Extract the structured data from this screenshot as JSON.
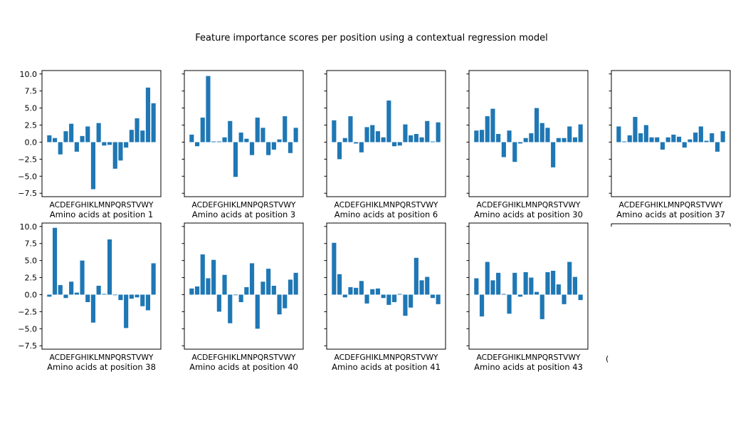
{
  "figure": {
    "title": "Feature importance scores per position using a contextual regression model"
  },
  "chart_data": [
    {
      "type": "bar",
      "xlabel": "Amino acids at position 1",
      "ylim": [
        -8,
        10.5
      ],
      "categories": [
        "A",
        "C",
        "D",
        "E",
        "F",
        "G",
        "H",
        "I",
        "K",
        "L",
        "M",
        "N",
        "P",
        "Q",
        "R",
        "S",
        "T",
        "V",
        "W",
        "Y"
      ],
      "values": [
        1.0,
        0.6,
        -1.8,
        1.6,
        2.7,
        -1.4,
        0.9,
        2.3,
        -6.9,
        2.8,
        -0.5,
        -0.4,
        -3.9,
        -2.7,
        -0.8,
        1.8,
        3.5,
        1.7,
        8.0,
        5.7
      ]
    },
    {
      "type": "bar",
      "xlabel": "Amino acids at position 3",
      "ylim": [
        -8,
        10.5
      ],
      "categories": [
        "A",
        "C",
        "D",
        "E",
        "F",
        "G",
        "H",
        "I",
        "K",
        "L",
        "M",
        "N",
        "P",
        "Q",
        "R",
        "S",
        "T",
        "V",
        "W",
        "Y"
      ],
      "values": [
        1.1,
        -0.6,
        3.6,
        9.7,
        0.1,
        0.1,
        0.7,
        3.1,
        -5.1,
        1.4,
        0.5,
        -1.9,
        3.6,
        2.1,
        -1.9,
        -1.1,
        0.4,
        3.8,
        -1.6,
        2.1
      ]
    },
    {
      "type": "bar",
      "xlabel": "Amino acids at position 6",
      "ylim": [
        -8,
        10.5
      ],
      "categories": [
        "A",
        "C",
        "D",
        "E",
        "F",
        "G",
        "H",
        "I",
        "K",
        "L",
        "M",
        "N",
        "P",
        "Q",
        "R",
        "S",
        "T",
        "V",
        "W",
        "Y"
      ],
      "values": [
        3.2,
        -2.5,
        0.6,
        3.8,
        -0.2,
        -1.5,
        2.2,
        2.5,
        1.6,
        0.7,
        6.1,
        -0.6,
        -0.5,
        2.6,
        1.0,
        1.2,
        0.7,
        3.1,
        0.1,
        2.9
      ]
    },
    {
      "type": "bar",
      "xlabel": "Amino acids at position 30",
      "ylim": [
        -8,
        10.5
      ],
      "categories": [
        "A",
        "C",
        "D",
        "E",
        "F",
        "G",
        "H",
        "I",
        "K",
        "L",
        "M",
        "N",
        "P",
        "Q",
        "R",
        "S",
        "T",
        "V",
        "W",
        "Y"
      ],
      "values": [
        1.7,
        1.8,
        3.8,
        4.9,
        1.2,
        -2.2,
        1.7,
        -2.9,
        -0.2,
        0.6,
        1.3,
        5.0,
        2.8,
        2.1,
        -3.7,
        0.6,
        0.6,
        2.3,
        0.7,
        2.6
      ]
    },
    {
      "type": "bar",
      "xlabel": "Amino acids at position 37",
      "ylim": [
        -8,
        10.5
      ],
      "categories": [
        "A",
        "C",
        "D",
        "E",
        "F",
        "G",
        "H",
        "I",
        "K",
        "L",
        "M",
        "N",
        "P",
        "Q",
        "R",
        "S",
        "T",
        "V",
        "W",
        "Y"
      ],
      "values": [
        2.3,
        0.1,
        1.0,
        3.7,
        1.3,
        2.5,
        0.7,
        0.7,
        -1.1,
        0.7,
        1.1,
        0.8,
        -0.8,
        0.4,
        1.4,
        2.3,
        0.2,
        1.3,
        -1.4,
        1.6
      ]
    },
    {
      "type": "bar",
      "xlabel": "Amino acids at position 38",
      "ylim": [
        -8,
        10.5
      ],
      "categories": [
        "A",
        "C",
        "D",
        "E",
        "F",
        "G",
        "H",
        "I",
        "K",
        "L",
        "M",
        "N",
        "P",
        "Q",
        "R",
        "S",
        "T",
        "V",
        "W",
        "Y"
      ],
      "values": [
        -0.3,
        9.8,
        1.4,
        -0.5,
        1.9,
        0.3,
        5.0,
        -1.1,
        -4.1,
        1.3,
        0.1,
        8.1,
        0.0,
        -0.8,
        -4.9,
        -0.6,
        -0.4,
        -1.7,
        -2.3,
        4.6
      ]
    },
    {
      "type": "bar",
      "xlabel": "Amino acids at position 40",
      "ylim": [
        -8,
        10.5
      ],
      "categories": [
        "A",
        "C",
        "D",
        "E",
        "F",
        "G",
        "H",
        "I",
        "K",
        "L",
        "M",
        "N",
        "P",
        "Q",
        "R",
        "S",
        "T",
        "V",
        "W",
        "Y"
      ],
      "values": [
        0.9,
        1.2,
        5.9,
        2.4,
        5.1,
        -2.5,
        2.9,
        -4.2,
        0.0,
        -1.1,
        1.1,
        4.6,
        -5.0,
        1.9,
        3.8,
        1.3,
        -2.9,
        -2.0,
        2.2,
        3.2
      ]
    },
    {
      "type": "bar",
      "xlabel": "Amino acids at position 41",
      "ylim": [
        -8,
        10.5
      ],
      "categories": [
        "A",
        "C",
        "D",
        "E",
        "F",
        "G",
        "H",
        "I",
        "K",
        "L",
        "M",
        "N",
        "P",
        "Q",
        "R",
        "S",
        "T",
        "V",
        "W",
        "Y"
      ],
      "values": [
        7.6,
        3.0,
        -0.4,
        1.1,
        1.0,
        2.0,
        -1.3,
        0.8,
        0.9,
        -0.5,
        -1.5,
        -1.1,
        0.1,
        -3.1,
        -1.9,
        5.4,
        2.1,
        2.6,
        -0.5,
        -1.4
      ]
    },
    {
      "type": "bar",
      "xlabel": "Amino acids at position 43",
      "ylim": [
        -8,
        10.5
      ],
      "categories": [
        "A",
        "C",
        "D",
        "E",
        "F",
        "G",
        "H",
        "I",
        "K",
        "L",
        "M",
        "N",
        "P",
        "Q",
        "R",
        "S",
        "T",
        "V",
        "W",
        "Y"
      ],
      "values": [
        2.4,
        -3.2,
        4.8,
        2.1,
        3.2,
        0.1,
        -2.8,
        3.2,
        -0.3,
        3.3,
        2.5,
        0.4,
        -3.6,
        3.3,
        3.5,
        1.5,
        -1.4,
        4.8,
        2.6,
        -0.8
      ]
    }
  ],
  "y_ticks": [
    "10.0",
    "7.5",
    "5.0",
    "2.5",
    "0.0",
    "−2.5",
    "−5.0",
    "−7.5"
  ],
  "tick_label_string": "ACDEFGHIKLMNPQRSTVWY",
  "partial_mark": "("
}
